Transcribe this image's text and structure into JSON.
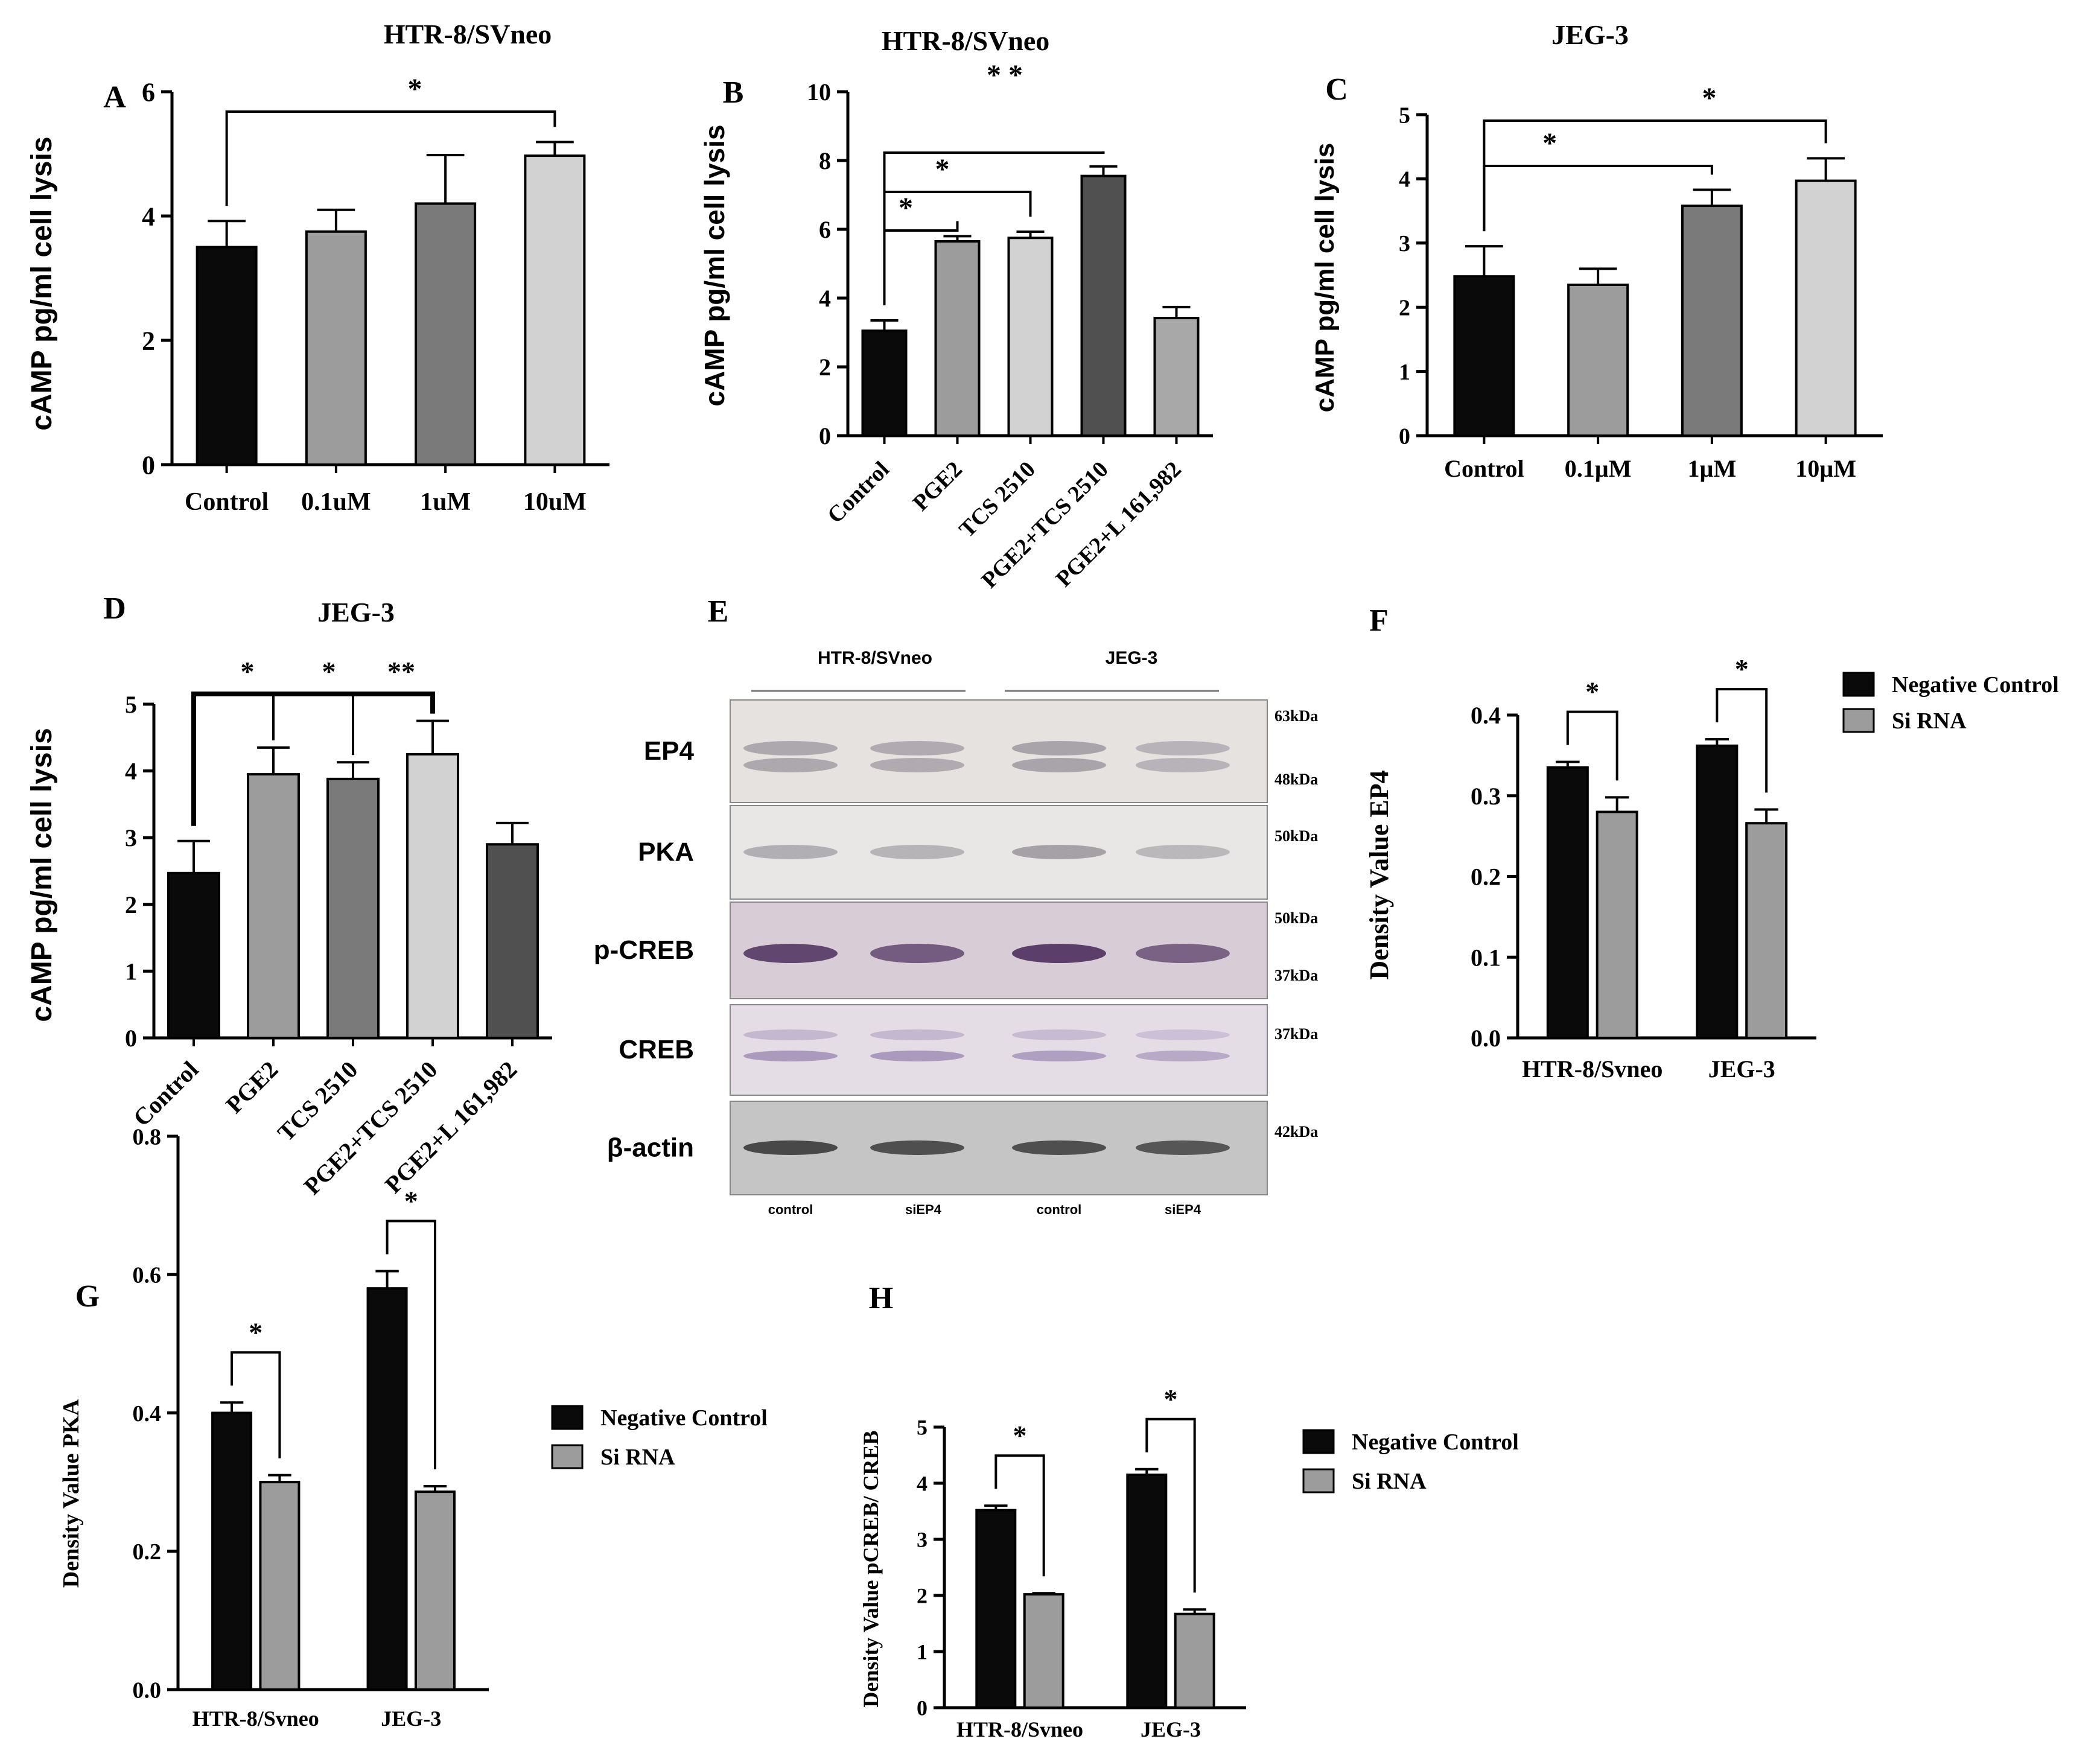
{
  "colors": {
    "black": "#0a0a0a",
    "dark_gray": "#505050",
    "mid_gray": "#7a7a7a",
    "gray": "#9c9c9c",
    "light_gray": "#d2d2d2",
    "lighter_gray": "#a8a8a8"
  },
  "chart_data": [
    {
      "panel": "A",
      "type": "bar",
      "title": "HTR-8/SVneo",
      "ylabel": "cAMP pg/ml  cell lysis",
      "categories": [
        "Control",
        "0.1uM",
        "1uM",
        "10uM"
      ],
      "values": [
        3.5,
        3.75,
        4.2,
        4.97
      ],
      "errors": [
        0.42,
        0.35,
        0.78,
        0.22
      ],
      "bar_colors": [
        "black",
        "gray",
        "mid_gray",
        "light_gray"
      ],
      "ylim": [
        0,
        6
      ],
      "yticks": [
        "0",
        "2",
        "4",
        "6"
      ],
      "tick_labels_rotated": false,
      "significance": [
        {
          "from": 0,
          "to": 3,
          "label": "*"
        }
      ]
    },
    {
      "panel": "B",
      "type": "bar",
      "title": "HTR-8/SVneo",
      "ylabel": "cAMP pg/ml  cell lysis",
      "categories": [
        "Control",
        "PGE2",
        "TCS 2510",
        "PGE2+TCS 2510",
        "PGE2+L 161,982"
      ],
      "values": [
        3.05,
        5.65,
        5.75,
        7.55,
        3.42
      ],
      "errors": [
        0.3,
        0.15,
        0.18,
        0.28,
        0.32
      ],
      "bar_colors": [
        "black",
        "gray",
        "light_gray",
        "dark_gray",
        "lighter_gray"
      ],
      "ylim": [
        0,
        10
      ],
      "yticks": [
        "0",
        "2",
        "4",
        "6",
        "8",
        "10"
      ],
      "tick_labels_rotated": true,
      "significance": [
        {
          "from": 0,
          "to": 1,
          "label": "*"
        },
        {
          "from": 0,
          "to": 2,
          "label": "*"
        },
        {
          "from": 0,
          "to": 3,
          "label": "*  *"
        }
      ]
    },
    {
      "panel": "C",
      "type": "bar",
      "title": "JEG-3",
      "ylabel": "cAMP pg/ml  cell lysis",
      "categories": [
        "Control",
        "0.1µM",
        "1µM",
        "10µM"
      ],
      "values": [
        2.48,
        2.35,
        3.58,
        3.97
      ],
      "errors": [
        0.47,
        0.25,
        0.25,
        0.35
      ],
      "bar_colors": [
        "black",
        "gray",
        "mid_gray",
        "light_gray"
      ],
      "ylim": [
        0,
        5
      ],
      "yticks": [
        "0",
        "1",
        "2",
        "3",
        "4",
        "5"
      ],
      "tick_labels_rotated": false,
      "significance": [
        {
          "from": 0,
          "to": 2,
          "label": "*"
        },
        {
          "from": 0,
          "to": 3,
          "label": "*"
        }
      ]
    },
    {
      "panel": "D",
      "type": "bar",
      "title": "JEG-3",
      "ylabel": "cAMP pg/ml  cell lysis",
      "categories": [
        "Control",
        "PGE2",
        "TCS 2510",
        "PGE2+TCS 2510",
        "PGE2+L 161,982"
      ],
      "values": [
        2.47,
        3.95,
        3.88,
        4.25,
        2.9
      ],
      "errors": [
        0.48,
        0.4,
        0.25,
        0.5,
        0.32
      ],
      "bar_colors": [
        "black",
        "gray",
        "mid_gray",
        "light_gray",
        "dark_gray"
      ],
      "ylim": [
        0,
        5
      ],
      "yticks": [
        "0",
        "1",
        "2",
        "3",
        "4",
        "5"
      ],
      "tick_labels_rotated": true,
      "significance_labels": [
        "*",
        "*",
        "**"
      ]
    },
    {
      "panel": "F",
      "type": "bar",
      "ylabel": "Density Value EP4",
      "groups": [
        "HTR-8/Svneo",
        "JEG-3"
      ],
      "series": [
        {
          "name": "Negative Control",
          "values": [
            0.335,
            0.362
          ],
          "errors": [
            0.007,
            0.008
          ],
          "color": "black"
        },
        {
          "name": "Si RNA",
          "values": [
            0.28,
            0.266
          ],
          "errors": [
            0.018,
            0.017
          ],
          "color": "gray"
        }
      ],
      "ylim": [
        0,
        0.4
      ],
      "yticks": [
        "0.0",
        "0.1",
        "0.2",
        "0.3",
        "0.4"
      ],
      "significance_labels": [
        "*",
        "*"
      ]
    },
    {
      "panel": "G",
      "type": "bar",
      "ylabel": "Density Value PKA",
      "groups": [
        "HTR-8/Svneo",
        "JEG-3"
      ],
      "series": [
        {
          "name": "Negative Control",
          "values": [
            0.4,
            0.58
          ],
          "errors": [
            0.015,
            0.025
          ],
          "color": "black"
        },
        {
          "name": "Si RNA",
          "values": [
            0.3,
            0.286
          ],
          "errors": [
            0.01,
            0.008
          ],
          "color": "gray"
        }
      ],
      "ylim": [
        0,
        0.8
      ],
      "yticks": [
        "0.0",
        "0.2",
        "0.4",
        "0.6",
        "0.8"
      ],
      "significance_labels": [
        "*",
        "*"
      ]
    },
    {
      "panel": "H",
      "type": "bar",
      "ylabel": "Density Value pCREB/ CREB",
      "groups": [
        "HTR-8/Svneo",
        "JEG-3"
      ],
      "series": [
        {
          "name": "Negative Control",
          "values": [
            3.52,
            4.15
          ],
          "errors": [
            0.08,
            0.1
          ],
          "color": "black"
        },
        {
          "name": "Si RNA",
          "values": [
            2.02,
            1.67
          ],
          "errors": [
            0.02,
            0.08
          ],
          "color": "gray"
        }
      ],
      "ylim": [
        0,
        5
      ],
      "yticks": [
        "0",
        "1",
        "2",
        "3",
        "4",
        "5"
      ],
      "significance_labels": [
        "*",
        "*"
      ]
    }
  ],
  "blot": {
    "panel": "E",
    "cell_lines": [
      "HTR-8/SVneo",
      "JEG-3"
    ],
    "lanes": [
      "control",
      "siEP4",
      "control",
      "siEP4"
    ],
    "rows": [
      {
        "label": "EP4",
        "kda": [
          "63kDa",
          "48kDa"
        ],
        "bg": "#e6e2e0",
        "band": "#9a949c",
        "intensity": [
          0.75,
          0.7,
          0.8,
          0.6
        ]
      },
      {
        "label": "PKA",
        "kda": [
          "50kDa"
        ],
        "bg": "#e9e7e6",
        "band": "#8e8a92",
        "intensity": [
          0.6,
          0.55,
          0.75,
          0.5
        ]
      },
      {
        "label": "p-CREB",
        "kda": [
          "50kDa",
          "37kDa"
        ],
        "bg": "#d8cdd6",
        "band": "#5b3e6a",
        "intensity": [
          0.95,
          0.8,
          1.0,
          0.75
        ]
      },
      {
        "label": "CREB",
        "kda": [
          "37kDa"
        ],
        "bg": "#e4dde6",
        "band": "#8c76a6",
        "intensity": [
          0.65,
          0.65,
          0.6,
          0.5
        ]
      },
      {
        "label": "β-actin",
        "kda": [
          "42kDa"
        ],
        "bg": "#c5c5c5",
        "band": "#3a3a3a",
        "intensity": [
          0.9,
          0.85,
          0.85,
          0.8
        ]
      }
    ]
  }
}
